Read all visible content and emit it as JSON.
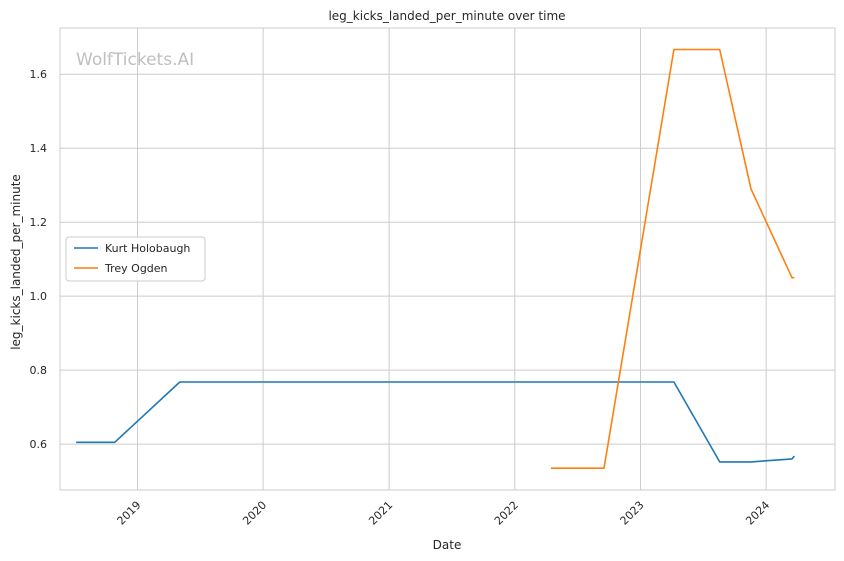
{
  "watermark": "WolfTickets.AI",
  "chart_data": {
    "type": "line",
    "title": "leg_kicks_landed_per_minute over time",
    "xlabel": "Date",
    "ylabel": "leg_kicks_landed_per_minute",
    "x_tick_labels": [
      "2019",
      "2020",
      "2021",
      "2022",
      "2023",
      "2024"
    ],
    "y_ticks": [
      0.6,
      0.8,
      1.0,
      1.2,
      1.4,
      1.6
    ],
    "y_tick_labels": [
      "0.6",
      "0.8",
      "1.0",
      "1.2",
      "1.4",
      "1.6"
    ],
    "xlim": [
      "2018-05-21",
      "2024-07-19"
    ],
    "ylim": [
      0.476,
      1.725
    ],
    "grid": true,
    "legend_position": "center-left",
    "series": [
      {
        "name": "Kurt Holobaugh",
        "color": "#1f77b4",
        "points": [
          {
            "x": "2018-07-07",
            "y": 0.605
          },
          {
            "x": "2018-10-27",
            "y": 0.605
          },
          {
            "x": "2019-05-04",
            "y": 0.768
          },
          {
            "x": "2023-04-08",
            "y": 0.768
          },
          {
            "x": "2023-08-19",
            "y": 0.552
          },
          {
            "x": "2023-11-18",
            "y": 0.552
          },
          {
            "x": "2024-03-16",
            "y": 0.56
          },
          {
            "x": "2024-03-23",
            "y": 0.568
          }
        ]
      },
      {
        "name": "Trey Ogden",
        "color": "#ff7f0e",
        "points": [
          {
            "x": "2022-04-16",
            "y": 0.535
          },
          {
            "x": "2022-09-17",
            "y": 0.535
          },
          {
            "x": "2023-04-08",
            "y": 1.667
          },
          {
            "x": "2023-08-19",
            "y": 1.667
          },
          {
            "x": "2023-11-18",
            "y": 1.29
          },
          {
            "x": "2024-03-16",
            "y": 1.05
          },
          {
            "x": "2024-03-23",
            "y": 1.05
          }
        ]
      }
    ]
  }
}
